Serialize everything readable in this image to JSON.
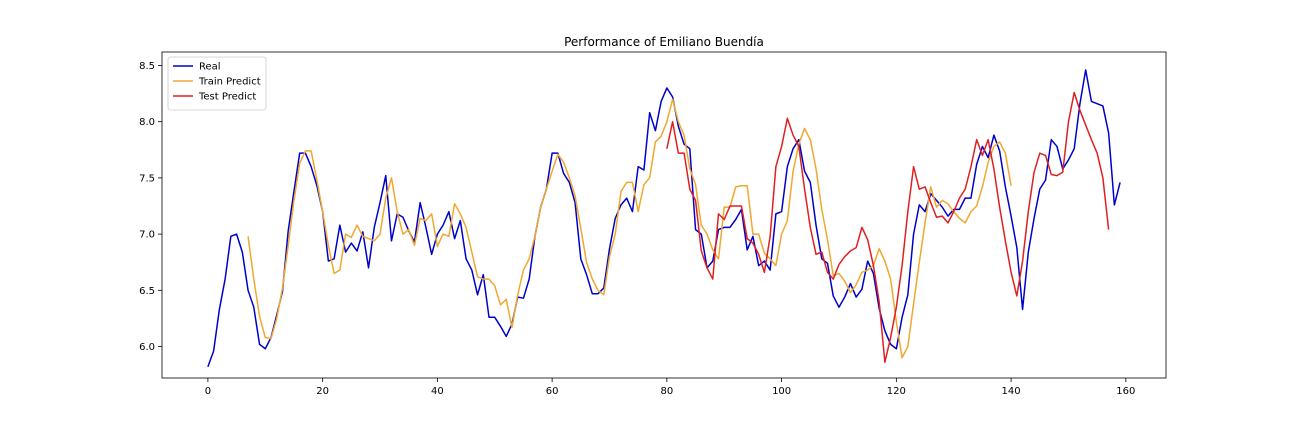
{
  "chart_data": {
    "type": "line",
    "title": "Performance of Emiliano Buendía",
    "xlabel": "",
    "ylabel": "",
    "xlim": [
      -8,
      167
    ],
    "ylim": [
      5.72,
      8.62
    ],
    "xticks": [
      0,
      20,
      40,
      60,
      80,
      100,
      120,
      140,
      160
    ],
    "yticks": [
      6.0,
      6.5,
      7.0,
      7.5,
      8.0,
      8.5
    ],
    "legend_position": "top-left",
    "grid": false,
    "series": [
      {
        "name": "Real",
        "color": "#0000cc",
        "x_start": 0,
        "values": [
          5.82,
          5.96,
          6.33,
          6.6,
          6.98,
          7.0,
          6.84,
          6.5,
          6.35,
          6.02,
          5.98,
          6.08,
          6.28,
          6.49,
          7.03,
          7.38,
          7.72,
          7.72,
          7.6,
          7.43,
          7.2,
          6.76,
          6.78,
          7.08,
          6.84,
          6.92,
          6.85,
          7.02,
          6.7,
          7.06,
          7.28,
          7.52,
          6.94,
          7.18,
          7.15,
          7.03,
          6.93,
          7.28,
          7.06,
          6.82,
          7.0,
          7.08,
          7.2,
          6.96,
          7.12,
          6.78,
          6.68,
          6.46,
          6.64,
          6.26,
          6.26,
          6.18,
          6.09,
          6.2,
          6.44,
          6.43,
          6.6,
          6.98,
          7.24,
          7.4,
          7.72,
          7.72,
          7.54,
          7.46,
          7.28,
          6.78,
          6.64,
          6.47,
          6.47,
          6.52,
          6.87,
          7.14,
          7.26,
          7.32,
          7.2,
          7.6,
          7.57,
          8.08,
          7.92,
          8.18,
          8.3,
          8.22,
          7.96,
          7.8,
          7.76,
          7.04,
          7.0,
          6.7,
          6.76,
          7.04,
          7.06,
          7.06,
          7.13,
          7.22,
          6.86,
          6.98,
          6.72,
          6.76,
          6.68,
          7.18,
          7.2,
          7.6,
          7.76,
          7.84,
          7.56,
          7.46,
          7.08,
          6.78,
          6.74,
          6.45,
          6.35,
          6.44,
          6.56,
          6.44,
          6.51,
          6.76,
          6.65,
          6.34,
          6.14,
          6.02,
          5.98,
          6.26,
          6.46,
          7.0,
          7.26,
          7.2,
          7.36,
          7.3,
          7.24,
          7.16,
          7.22,
          7.22,
          7.32,
          7.32,
          7.62,
          7.78,
          7.68,
          7.88,
          7.74,
          7.42,
          7.16,
          6.88,
          6.33,
          6.84,
          7.14,
          7.4,
          7.48,
          7.84,
          7.78,
          7.58,
          7.66,
          7.76,
          8.16,
          8.46,
          8.18,
          8.16,
          8.14,
          7.9,
          7.26,
          7.46
        ]
      },
      {
        "name": "Train Predict",
        "color": "#f0a830",
        "x_start": 7,
        "values": [
          6.98,
          6.6,
          6.27,
          6.08,
          6.07,
          6.25,
          6.52,
          6.9,
          7.3,
          7.63,
          7.74,
          7.74,
          7.48,
          7.2,
          6.9,
          6.65,
          6.68,
          7.0,
          6.97,
          7.08,
          6.98,
          6.96,
          6.94,
          7.0,
          7.32,
          7.5,
          7.2,
          7.0,
          7.04,
          6.9,
          7.14,
          7.12,
          7.18,
          6.89,
          7.0,
          6.98,
          7.27,
          7.18,
          7.06,
          6.84,
          6.62,
          6.6,
          6.6,
          6.54,
          6.37,
          6.42,
          6.17,
          6.46,
          6.68,
          6.78,
          6.98,
          7.24,
          7.4,
          7.56,
          7.71,
          7.64,
          7.5,
          7.34,
          7.05,
          6.75,
          6.6,
          6.5,
          6.46,
          6.8,
          7.0,
          7.38,
          7.46,
          7.46,
          7.2,
          7.44,
          7.5,
          7.82,
          7.87,
          8.0,
          8.2,
          8.0,
          7.88,
          7.58,
          7.44,
          7.08,
          7.0,
          6.86,
          6.78,
          7.24,
          7.24,
          7.42,
          7.43,
          7.43,
          7.0,
          7.0,
          6.83,
          6.78,
          6.72,
          7.0,
          7.12,
          7.56,
          7.8,
          7.94,
          7.84,
          7.58,
          7.22,
          6.95,
          6.63,
          6.65,
          6.58,
          6.48,
          6.55,
          6.66,
          6.68,
          6.72,
          6.87,
          6.76,
          6.6,
          6.22,
          5.9,
          6.0,
          6.38,
          6.75,
          7.1,
          7.42,
          7.24,
          7.3,
          7.27,
          7.2,
          7.14,
          7.1,
          7.2,
          7.25,
          7.42,
          7.64,
          7.78,
          7.82,
          7.72,
          7.43
        ]
      },
      {
        "name": "Test Predict",
        "color": "#e02020",
        "x_start": 80,
        "values": [
          7.76,
          8.0,
          7.72,
          7.72,
          7.4,
          7.3,
          6.85,
          6.7,
          6.6,
          7.18,
          7.13,
          7.25,
          7.25,
          7.25,
          6.96,
          6.92,
          6.82,
          6.66,
          6.98,
          7.6,
          7.78,
          8.03,
          7.88,
          7.78,
          7.4,
          7.06,
          6.82,
          6.84,
          6.66,
          6.6,
          6.73,
          6.8,
          6.85,
          6.88,
          7.06,
          6.95,
          6.72,
          6.4,
          5.86,
          6.08,
          6.35,
          6.72,
          7.2,
          7.6,
          7.4,
          7.42,
          7.28,
          7.15,
          7.16,
          7.1,
          7.2,
          7.32,
          7.4,
          7.6,
          7.84,
          7.7,
          7.84,
          7.58,
          7.24,
          6.94,
          6.66,
          6.45,
          6.76,
          7.2,
          7.55,
          7.72,
          7.7,
          7.53,
          7.52,
          7.55,
          8.0,
          8.26,
          8.1,
          7.97,
          7.84,
          7.72,
          7.5,
          7.04
        ]
      }
    ],
    "legend": {
      "entries": [
        "Real",
        "Train Predict",
        "Test Predict"
      ]
    }
  }
}
